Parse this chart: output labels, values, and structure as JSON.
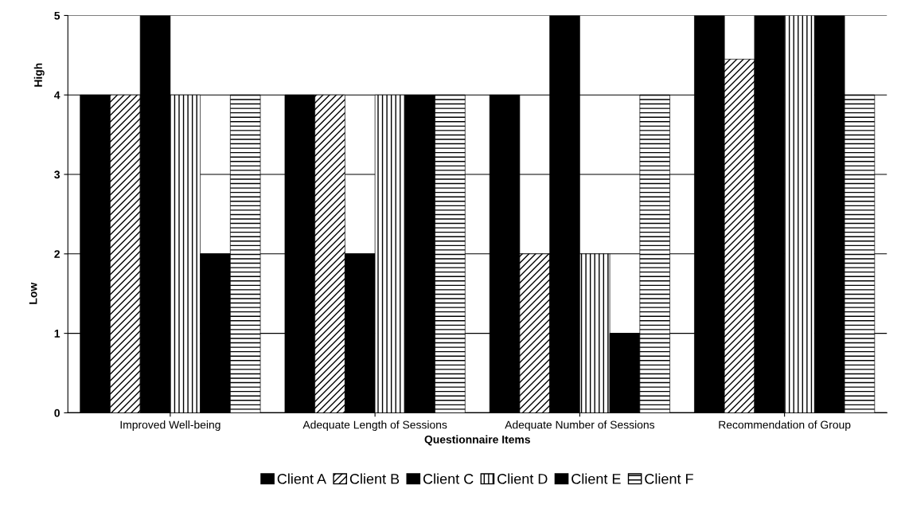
{
  "chart_data": {
    "type": "bar",
    "xlabel": "Questionnaire Items",
    "ylabel": "Low",
    "annotations": [
      "High"
    ],
    "categories": [
      "Improved Well-being",
      "Adequate Length of Sessions",
      "Adequate Number of Sessions",
      "Recommendation of Group"
    ],
    "series": [
      {
        "name": "Client A",
        "color": "#000000",
        "values": [
          4,
          4,
          4,
          5
        ]
      },
      {
        "name": "Client B",
        "color": "#000000",
        "values": [
          4,
          4,
          2,
          4.45
        ]
      },
      {
        "name": "Client C",
        "color": "#000000",
        "values": [
          5,
          2,
          5,
          5
        ]
      },
      {
        "name": "Client D",
        "color": "#000000",
        "values": [
          4,
          4,
          2,
          5
        ]
      },
      {
        "name": "Client E",
        "color": "#000000",
        "values": [
          2,
          4,
          1,
          5
        ]
      },
      {
        "name": "Client F",
        "color": "#000000",
        "values": [
          4,
          4,
          4,
          4
        ]
      }
    ],
    "ylim": [
      0,
      5
    ],
    "yticks": [
      0,
      1,
      2,
      3,
      4,
      5
    ],
    "grid": "y",
    "legend": "bottom"
  }
}
